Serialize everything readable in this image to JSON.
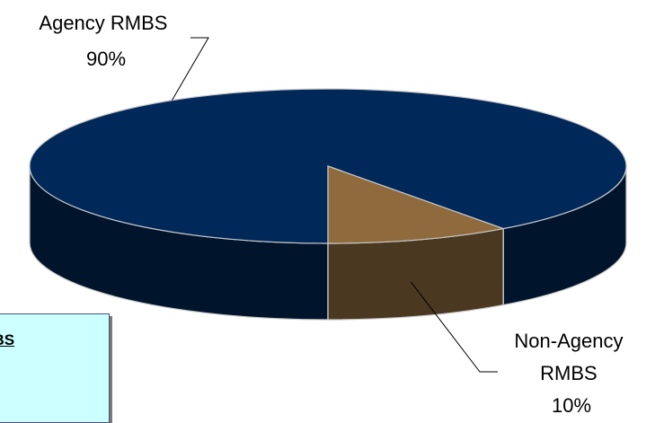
{
  "chart_data": {
    "type": "pie",
    "title": "",
    "categories": [
      "Agency RMBS",
      "Non-Agency RMBS"
    ],
    "values": [
      90,
      10
    ],
    "data_labels": [
      {
        "category": "Agency RMBS",
        "lines": [
          "Agency RMBS",
          "90%"
        ]
      },
      {
        "category": "Non-Agency RMBS",
        "lines": [
          "Non-Agency",
          "RMBS",
          "10%"
        ]
      }
    ],
    "colors": {
      "Agency RMBS": {
        "top": "#002858",
        "side": "#00142c"
      },
      "Non-Agency RMBS": {
        "top": "#8e6a3c",
        "side": "#4a3820"
      },
      "edge": "#c8c8c8"
    },
    "style": "3d"
  },
  "legend_panel": {
    "text": "RMBS",
    "background": "#ccffff"
  }
}
